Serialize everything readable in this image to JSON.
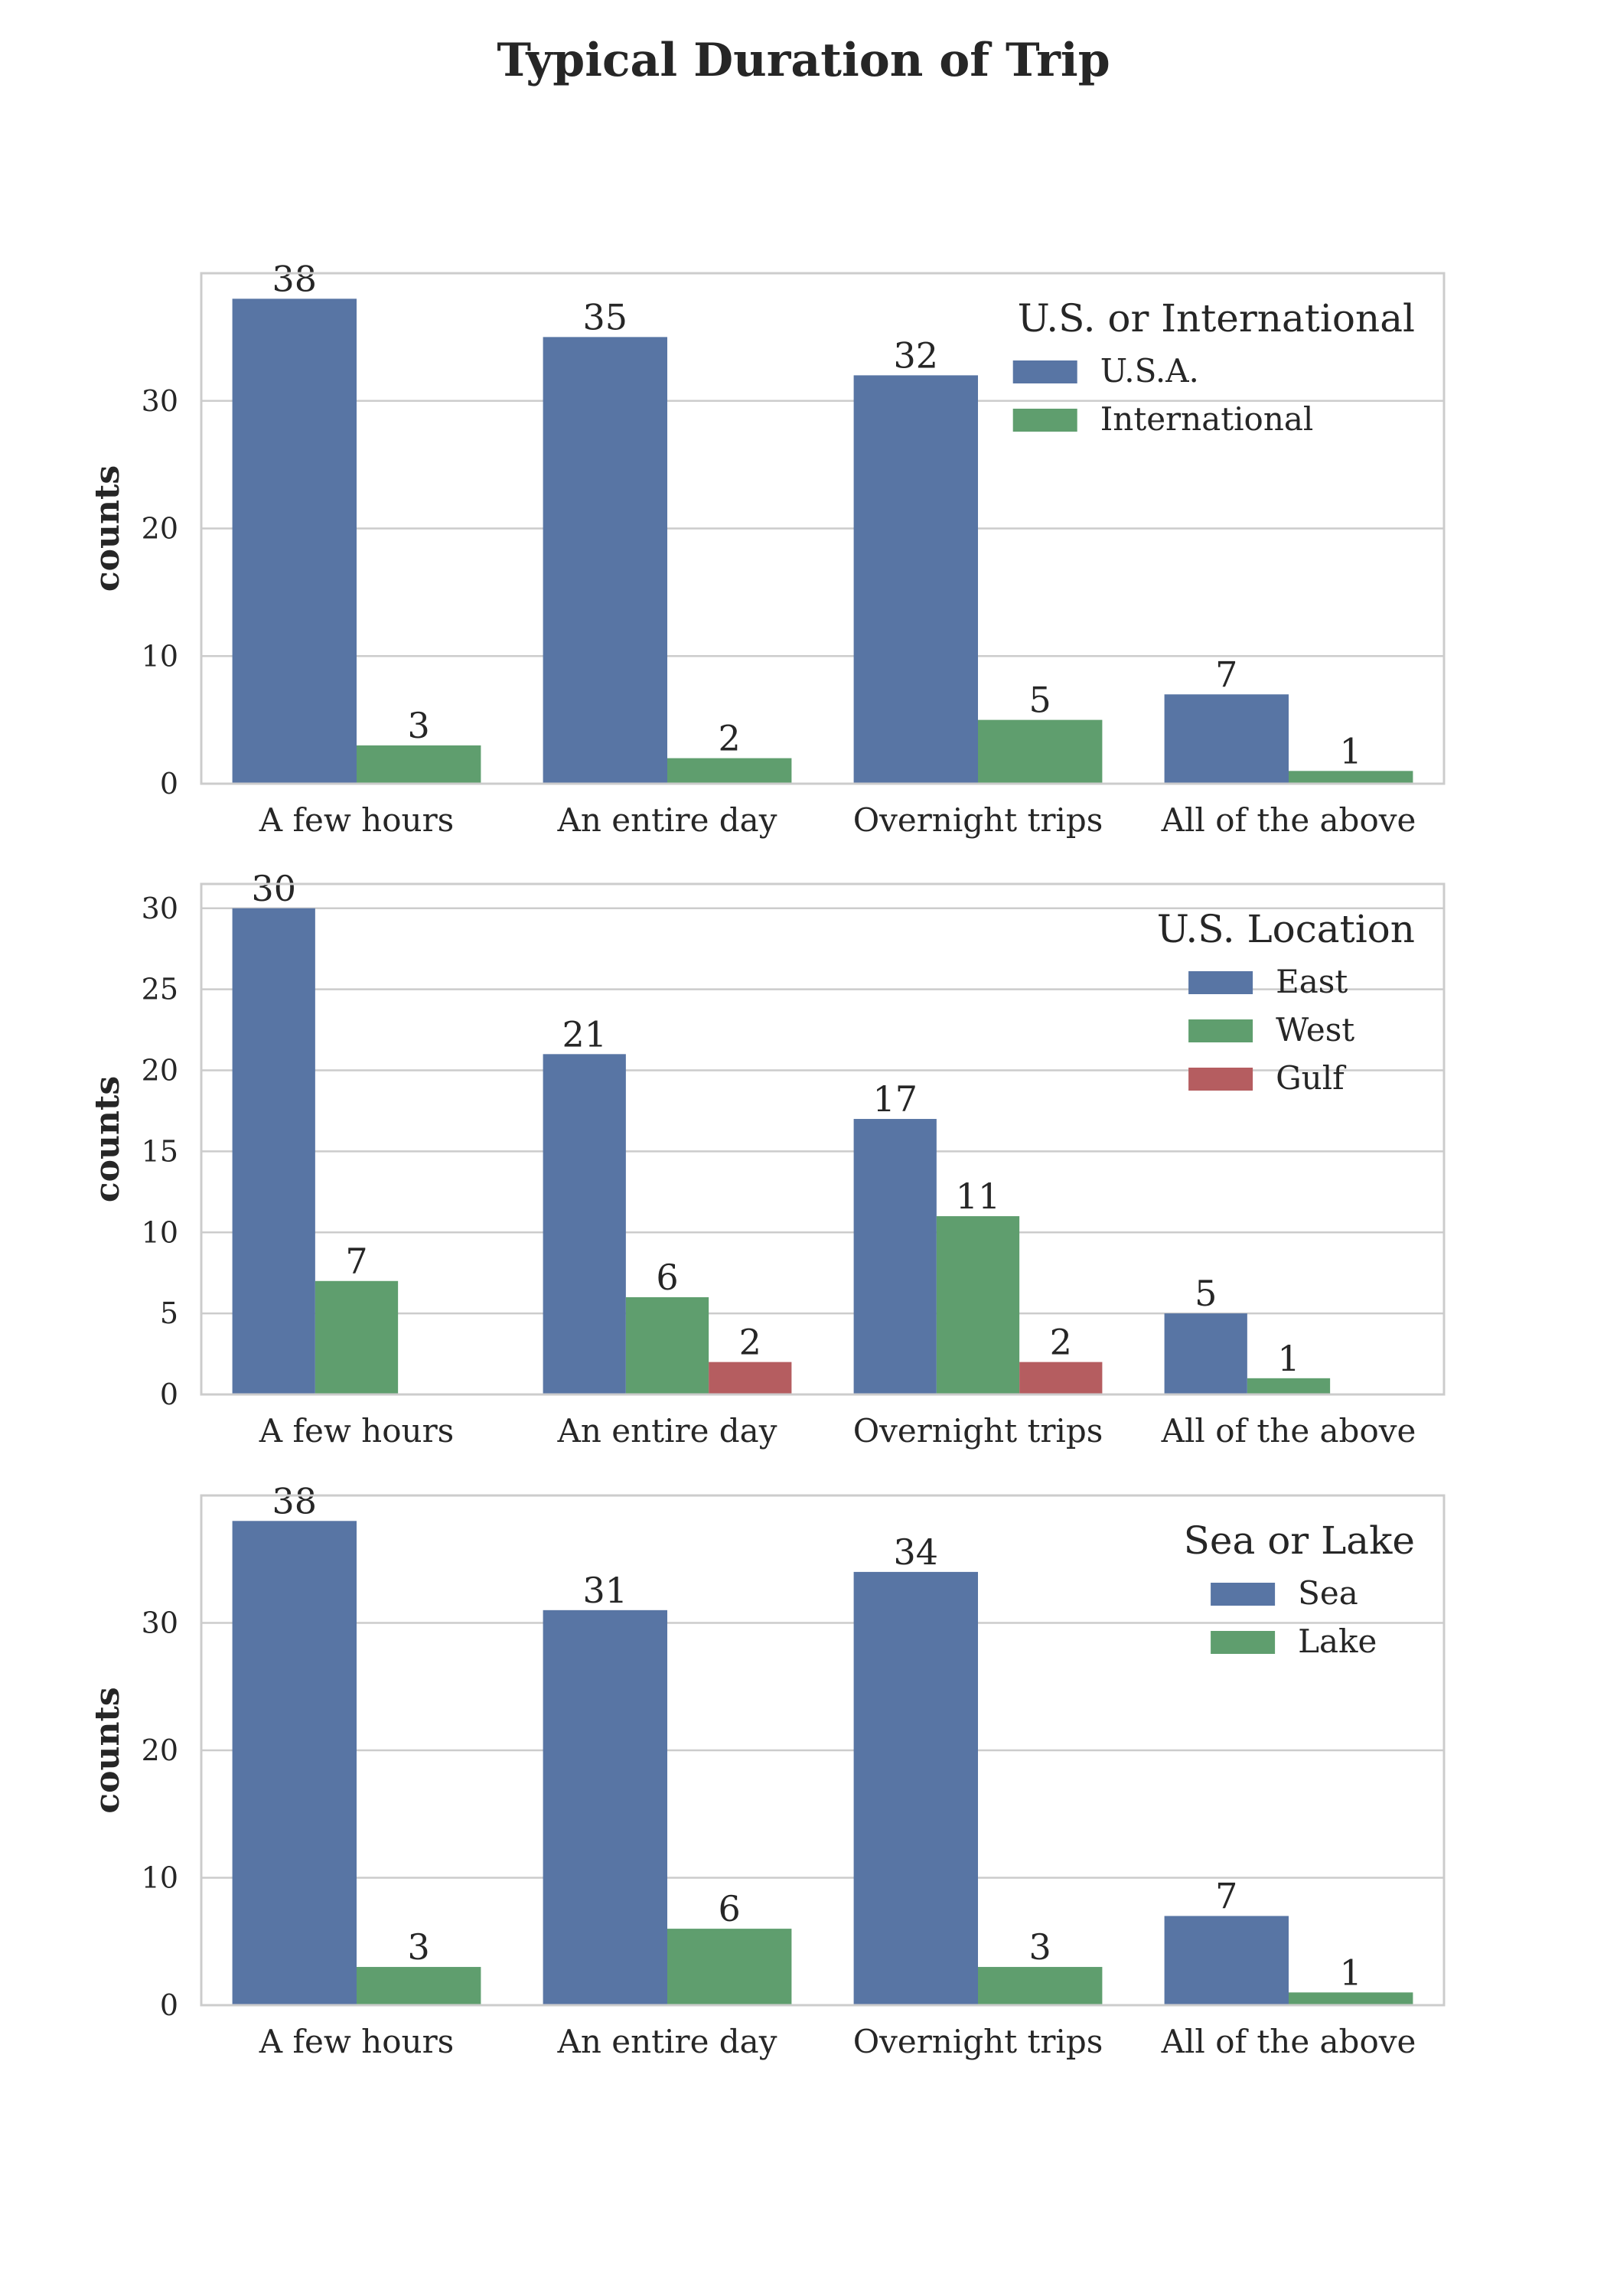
{
  "figure": {
    "title": "Typical Duration of Trip"
  },
  "colors": {
    "series_1": "#5875a4",
    "series_2": "#5f9e6e",
    "series_3": "#b55d60",
    "grid": "#cccccc",
    "text": "#262626"
  },
  "chart_data": [
    {
      "type": "bar",
      "categories": [
        "A few hours",
        "An entire day",
        "Overnight trips",
        "All of the above"
      ],
      "ylabel": "counts",
      "ylim": [
        0,
        40
      ],
      "yticks": [
        0,
        10,
        20,
        30
      ],
      "grid": true,
      "legend": {
        "title": "U.S. or International",
        "placement": "top-right"
      },
      "series": [
        {
          "name": "U.S.A.",
          "values": [
            38,
            35,
            32,
            7
          ],
          "color": "#5875a4"
        },
        {
          "name": "International",
          "values": [
            3,
            2,
            5,
            1
          ],
          "color": "#5f9e6e"
        }
      ]
    },
    {
      "type": "bar",
      "categories": [
        "A few hours",
        "An entire day",
        "Overnight trips",
        "All of the above"
      ],
      "ylabel": "counts",
      "ylim": [
        0,
        31.5
      ],
      "yticks": [
        0,
        5,
        10,
        15,
        20,
        25,
        30
      ],
      "grid": true,
      "legend": {
        "title": "U.S. Location",
        "placement": "top-right"
      },
      "series": [
        {
          "name": "East",
          "values": [
            30,
            21,
            17,
            5
          ],
          "color": "#5875a4"
        },
        {
          "name": "West",
          "values": [
            7,
            6,
            11,
            1
          ],
          "color": "#5f9e6e"
        },
        {
          "name": "Gulf",
          "values": [
            null,
            2,
            2,
            null
          ],
          "color": "#b55d60"
        }
      ]
    },
    {
      "type": "bar",
      "categories": [
        "A few hours",
        "An entire day",
        "Overnight trips",
        "All of the above"
      ],
      "ylabel": "counts",
      "ylim": [
        0,
        40
      ],
      "yticks": [
        0,
        10,
        20,
        30
      ],
      "grid": true,
      "legend": {
        "title": "Sea or Lake",
        "placement": "top-right"
      },
      "series": [
        {
          "name": "Sea",
          "values": [
            38,
            31,
            34,
            7
          ],
          "color": "#5875a4"
        },
        {
          "name": "Lake",
          "values": [
            3,
            6,
            3,
            1
          ],
          "color": "#5f9e6e"
        }
      ]
    }
  ]
}
